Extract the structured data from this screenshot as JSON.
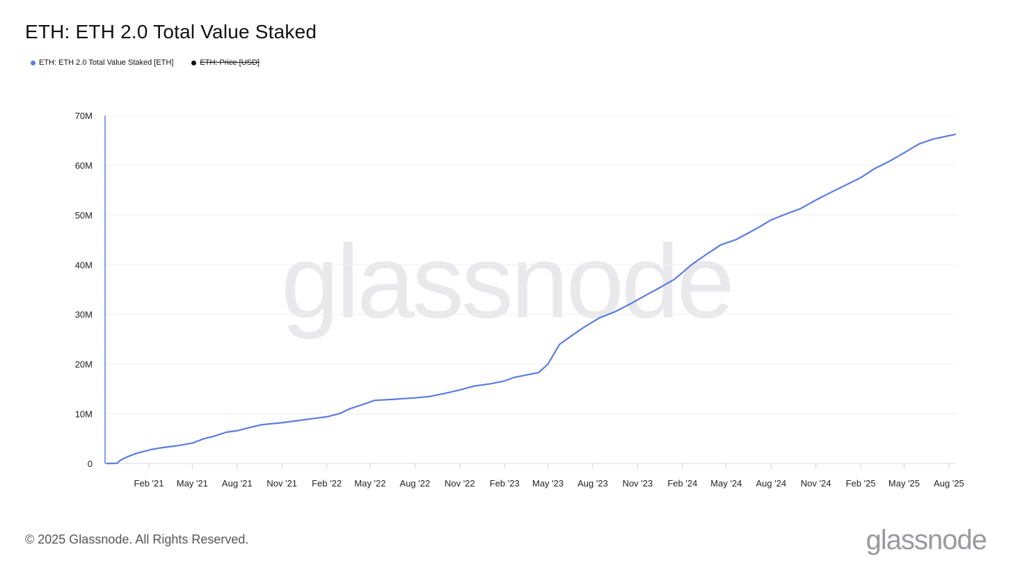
{
  "page": {
    "title": "ETH: ETH 2.0 Total Value Staked",
    "footer": "© 2025 Glassnode. All Rights Reserved.",
    "brand": "glassnode",
    "watermark": "glassnode"
  },
  "legend": [
    {
      "label": "ETH: ETH 2.0 Total Value Staked [ETH]",
      "color": "#5b7be1",
      "active": true
    },
    {
      "label": "ETH: Price [USD]",
      "color": "#111111",
      "active": false
    }
  ],
  "chart_data": {
    "type": "line",
    "title": "ETH: ETH 2.0 Total Value Staked",
    "xlabel": "",
    "ylabel": "",
    "ylim": [
      0,
      70000000
    ],
    "y_ticks": [
      {
        "value": 0,
        "label": "0"
      },
      {
        "value": 10000000,
        "label": "10M"
      },
      {
        "value": 20000000,
        "label": "20M"
      },
      {
        "value": 30000000,
        "label": "30M"
      },
      {
        "value": 40000000,
        "label": "40M"
      },
      {
        "value": 50000000,
        "label": "50M"
      },
      {
        "value": 60000000,
        "label": "60M"
      },
      {
        "value": 70000000,
        "label": "70M"
      }
    ],
    "x_range": [
      "2020-11-03",
      "2025-08-14"
    ],
    "x_ticks": [
      {
        "date": "2021-02-01",
        "label": "Feb '21"
      },
      {
        "date": "2021-05-01",
        "label": "May '21"
      },
      {
        "date": "2021-08-01",
        "label": "Aug '21"
      },
      {
        "date": "2021-11-01",
        "label": "Nov '21"
      },
      {
        "date": "2022-02-01",
        "label": "Feb '22"
      },
      {
        "date": "2022-05-01",
        "label": "May '22"
      },
      {
        "date": "2022-08-01",
        "label": "Aug '22"
      },
      {
        "date": "2022-11-01",
        "label": "Nov '22"
      },
      {
        "date": "2023-02-01",
        "label": "Feb '23"
      },
      {
        "date": "2023-05-01",
        "label": "May '23"
      },
      {
        "date": "2023-08-01",
        "label": "Aug '23"
      },
      {
        "date": "2023-11-01",
        "label": "Nov '23"
      },
      {
        "date": "2024-02-01",
        "label": "Feb '24"
      },
      {
        "date": "2024-05-01",
        "label": "May '24"
      },
      {
        "date": "2024-08-01",
        "label": "Aug '24"
      },
      {
        "date": "2024-11-01",
        "label": "Nov '24"
      },
      {
        "date": "2025-02-01",
        "label": "Feb '25"
      },
      {
        "date": "2025-05-01",
        "label": "May '25"
      },
      {
        "date": "2025-08-01",
        "label": "Aug '25"
      }
    ],
    "grid": true,
    "series": [
      {
        "name": "ETH: ETH 2.0 Total Value Staked [ETH]",
        "color": "#5b7be1",
        "points": [
          {
            "x": "2020-11-06",
            "y": 0
          },
          {
            "x": "2020-11-28",
            "y": 50000
          },
          {
            "x": "2020-12-05",
            "y": 700000
          },
          {
            "x": "2020-12-20",
            "y": 1400000
          },
          {
            "x": "2021-01-05",
            "y": 2000000
          },
          {
            "x": "2021-01-25",
            "y": 2500000
          },
          {
            "x": "2021-02-05",
            "y": 2800000
          },
          {
            "x": "2021-03-01",
            "y": 3200000
          },
          {
            "x": "2021-04-01",
            "y": 3600000
          },
          {
            "x": "2021-05-01",
            "y": 4100000
          },
          {
            "x": "2021-05-25",
            "y": 5000000
          },
          {
            "x": "2021-06-15",
            "y": 5500000
          },
          {
            "x": "2021-07-10",
            "y": 6300000
          },
          {
            "x": "2021-08-01",
            "y": 6600000
          },
          {
            "x": "2021-08-25",
            "y": 7200000
          },
          {
            "x": "2021-09-20",
            "y": 7800000
          },
          {
            "x": "2021-11-01",
            "y": 8200000
          },
          {
            "x": "2021-12-01",
            "y": 8600000
          },
          {
            "x": "2022-01-01",
            "y": 9000000
          },
          {
            "x": "2022-02-01",
            "y": 9400000
          },
          {
            "x": "2022-03-01",
            "y": 10100000
          },
          {
            "x": "2022-03-20",
            "y": 11000000
          },
          {
            "x": "2022-04-20",
            "y": 12000000
          },
          {
            "x": "2022-05-10",
            "y": 12700000
          },
          {
            "x": "2022-06-15",
            "y": 12900000
          },
          {
            "x": "2022-08-01",
            "y": 13200000
          },
          {
            "x": "2022-09-01",
            "y": 13500000
          },
          {
            "x": "2022-10-01",
            "y": 14100000
          },
          {
            "x": "2022-11-01",
            "y": 14800000
          },
          {
            "x": "2022-12-01",
            "y": 15600000
          },
          {
            "x": "2023-01-01",
            "y": 16000000
          },
          {
            "x": "2023-02-01",
            "y": 16600000
          },
          {
            "x": "2023-02-20",
            "y": 17300000
          },
          {
            "x": "2023-04-12",
            "y": 18300000
          },
          {
            "x": "2023-05-01",
            "y": 20000000
          },
          {
            "x": "2023-05-25",
            "y": 24000000
          },
          {
            "x": "2023-06-20",
            "y": 25800000
          },
          {
            "x": "2023-07-15",
            "y": 27500000
          },
          {
            "x": "2023-08-15",
            "y": 29300000
          },
          {
            "x": "2023-09-15",
            "y": 30500000
          },
          {
            "x": "2023-10-15",
            "y": 32000000
          },
          {
            "x": "2023-11-15",
            "y": 33700000
          },
          {
            "x": "2023-12-15",
            "y": 35300000
          },
          {
            "x": "2024-01-15",
            "y": 37000000
          },
          {
            "x": "2024-02-01",
            "y": 38400000
          },
          {
            "x": "2024-02-20",
            "y": 40000000
          },
          {
            "x": "2024-03-20",
            "y": 42000000
          },
          {
            "x": "2024-04-20",
            "y": 44000000
          },
          {
            "x": "2024-05-20",
            "y": 45000000
          },
          {
            "x": "2024-07-01",
            "y": 47200000
          },
          {
            "x": "2024-08-01",
            "y": 49000000
          },
          {
            "x": "2024-09-01",
            "y": 50200000
          },
          {
            "x": "2024-10-01",
            "y": 51300000
          },
          {
            "x": "2024-11-01",
            "y": 53000000
          },
          {
            "x": "2024-12-01",
            "y": 54500000
          },
          {
            "x": "2025-01-01",
            "y": 56000000
          },
          {
            "x": "2025-02-01",
            "y": 57500000
          },
          {
            "x": "2025-03-01",
            "y": 59300000
          },
          {
            "x": "2025-04-01",
            "y": 60800000
          },
          {
            "x": "2025-05-01",
            "y": 62500000
          },
          {
            "x": "2025-06-01",
            "y": 64300000
          },
          {
            "x": "2025-07-01",
            "y": 65300000
          },
          {
            "x": "2025-08-14",
            "y": 66200000
          }
        ]
      }
    ]
  }
}
